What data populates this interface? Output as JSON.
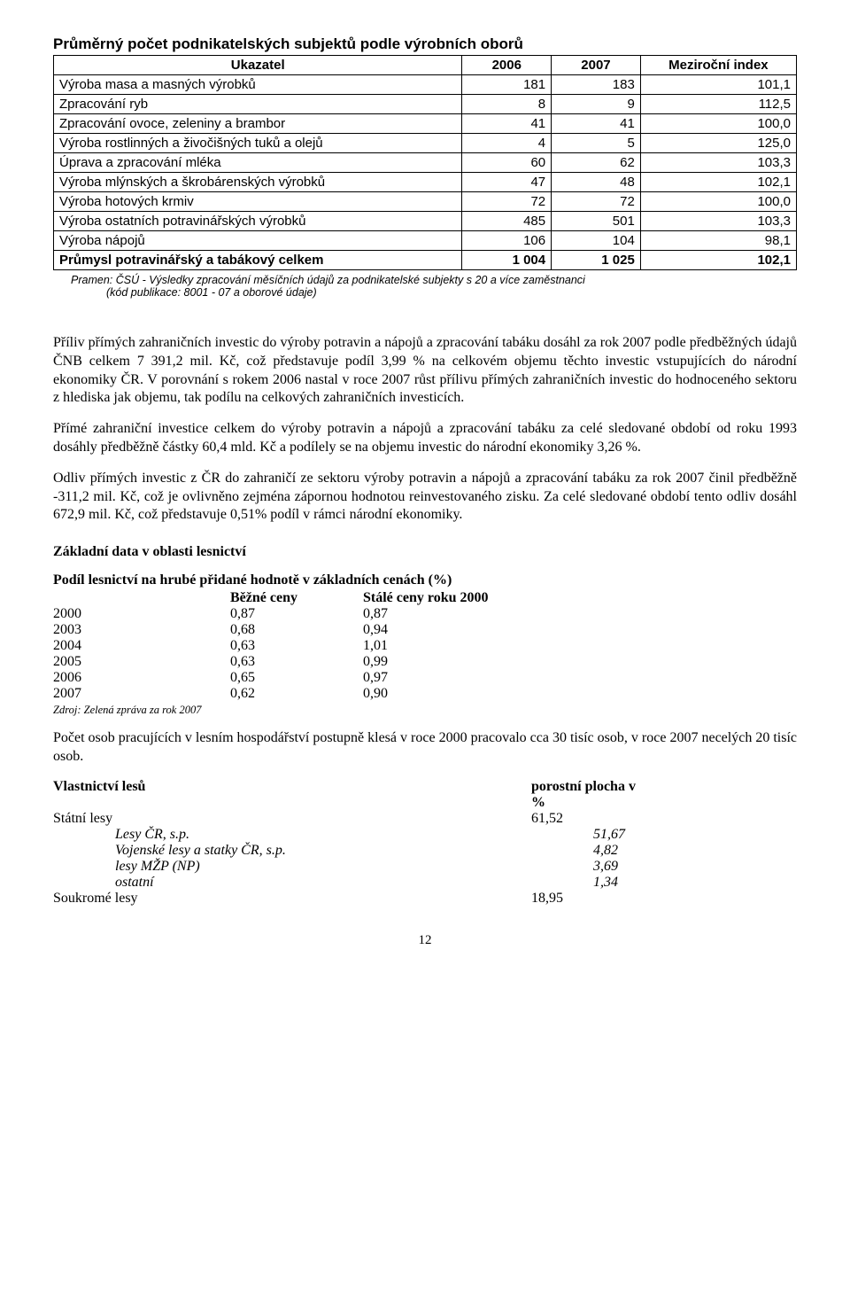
{
  "table": {
    "title": "Průměrný počet podnikatelských subjektů podle výrobních oborů",
    "columns": [
      "Ukazatel",
      "2006",
      "2007",
      "Meziroční index"
    ],
    "rows": [
      {
        "label": "Výroba masa a masných výrobků",
        "v1": "181",
        "v2": "183",
        "v3": "101,1"
      },
      {
        "label": "Zpracování ryb",
        "v1": "8",
        "v2": "9",
        "v3": "112,5"
      },
      {
        "label": "Zpracování ovoce, zeleniny a brambor",
        "v1": "41",
        "v2": "41",
        "v3": "100,0"
      },
      {
        "label": "Výroba rostlinných a živočišných tuků a olejů",
        "v1": "4",
        "v2": "5",
        "v3": "125,0"
      },
      {
        "label": "Úprava a zpracování mléka",
        "v1": "60",
        "v2": "62",
        "v3": "103,3"
      },
      {
        "label": "Výroba mlýnských a  škrobárenských výrobků",
        "v1": "47",
        "v2": "48",
        "v3": "102,1"
      },
      {
        "label": "Výroba hotových krmiv",
        "v1": "72",
        "v2": "72",
        "v3": "100,0"
      },
      {
        "label": "Výroba ostatních potravinářských výrobků",
        "v1": "485",
        "v2": "501",
        "v3": "103,3"
      },
      {
        "label": "Výroba nápojů",
        "v1": "106",
        "v2": "104",
        "v3": "98,1"
      }
    ],
    "total": {
      "label": "Průmysl potravinářský a tabákový celkem",
      "v1": "1 004",
      "v2": "1 025",
      "v3": "102,1"
    }
  },
  "source1_line1": "Pramen: ČSÚ - Výsledky zpracování měsíčních údajů za podnikatelské subjekty s 20 a více zaměstnanci",
  "source1_line2": "(kód publikace: 8001 - 07 a oborové údaje)",
  "para1": "Příliv přímých zahraničních investic do výroby potravin a nápojů a zpracování tabáku dosáhl za rok 2007 podle předběžných údajů ČNB celkem 7 391,2 mil. Kč, což představuje podíl 3,99 % na celkovém objemu těchto investic vstupujících do národní ekonomiky ČR. V porovnání s rokem 2006 nastal v roce 2007 růst přílivu přímých zahraničních investic do hodnoceného sektoru z hlediska jak objemu, tak podílu na celkových zahraničních investicích.",
  "para2": "Přímé zahraniční investice celkem do výroby potravin a nápojů a zpracování tabáku za celé sledované období od roku 1993 dosáhly předběžně částky 60,4 mld. Kč a podílely se na objemu investic do národní ekonomiky 3,26 %.",
  "para3": "Odliv přímých investic z ČR do zahraničí ze sektoru výroby potravin a nápojů a zpracování tabáku za rok 2007 činil předběžně -311,2 mil. Kč, což je ovlivněno zejména zápornou hodnotou reinvestovaného zisku. Za celé sledované období tento odliv dosáhl 672,9 mil. Kč, což představuje 0,51% podíl v rámci národní ekonomiky.",
  "section_heading": "Základní data v oblasti lesnictví",
  "gdp": {
    "title": "Podíl lesnictví na hrubé přidané hodnotě v základních cenách (%)",
    "col2": "Běžné ceny",
    "col3": "Stálé ceny roku 2000",
    "rows": [
      {
        "y": "2000",
        "a": "0,87",
        "b": "0,87"
      },
      {
        "y": "2003",
        "a": "0,68",
        "b": "0,94"
      },
      {
        "y": "2004",
        "a": "0,63",
        "b": "1,01"
      },
      {
        "y": "2005",
        "a": "0,63",
        "b": "0,99"
      },
      {
        "y": "2006",
        "a": "0,65",
        "b": "0,97"
      },
      {
        "y": "2007",
        "a": "0,62",
        "b": "0,90"
      }
    ],
    "source": "Zdroj: Zelená zpráva za rok 2007"
  },
  "para4": "Počet osob pracujících v lesním hospodářství postupně klesá v roce 2000 pracovalo cca 30 tisíc osob, v roce 2007 necelých 20 tisíc osob.",
  "forest": {
    "header_label": "Vlastnictví lesů",
    "header_value": "porostní plocha v %",
    "rows": [
      {
        "label": "Státní lesy",
        "value": "61,52",
        "indent": 0,
        "italic": false
      },
      {
        "label": "Lesy ČR, s.p.",
        "value": "51,67",
        "indent": 1,
        "italic": true
      },
      {
        "label": "Vojenské lesy a statky ČR, s.p.",
        "value": "4,82",
        "indent": 1,
        "italic": true
      },
      {
        "label": "lesy MŽP (NP)",
        "value": "3,69",
        "indent": 1,
        "italic": true
      },
      {
        "label": "ostatní",
        "value": "1,34",
        "indent": 1,
        "italic": true
      },
      {
        "label": "Soukromé lesy",
        "value": "18,95",
        "indent": 0,
        "italic": false
      }
    ]
  },
  "page_number": "12"
}
